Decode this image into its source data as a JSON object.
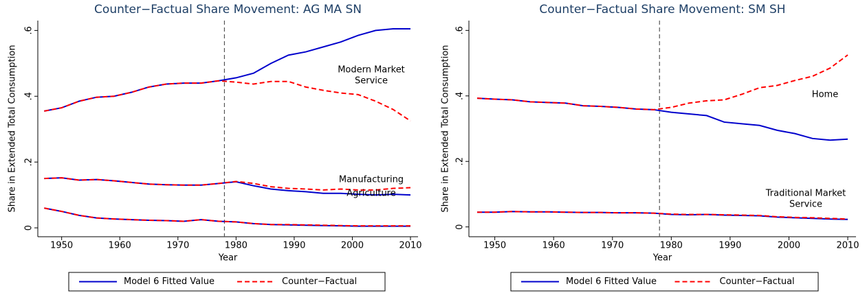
{
  "chart_data": [
    {
      "type": "line",
      "title": "Counter−Factual Share Movement: AG MA SN",
      "x_label": "Year",
      "y_label": "Share in Extended Total Consumption",
      "x": [
        1947,
        1950,
        1953,
        1956,
        1959,
        1962,
        1965,
        1968,
        1971,
        1974,
        1977,
        1980,
        1983,
        1986,
        1989,
        1992,
        1995,
        1998,
        2001,
        2004,
        2007,
        2010
      ],
      "xlim": [
        1945.9,
        2011.3
      ],
      "xticks": [
        1950,
        1960,
        1970,
        1980,
        1990,
        2000,
        2010
      ],
      "ylim": [
        -0.027,
        0.63
      ],
      "yticks": [
        0,
        {
          "value": 0.2,
          "label": ".2"
        },
        {
          "value": 0.4,
          "label": ".4"
        },
        {
          "value": 0.6,
          "label": ".6"
        }
      ],
      "vline": 1978,
      "series_styles": {
        "fitted": {
          "name": "Model 6 Fitted Value",
          "color": "#0000cc",
          "dash": false
        },
        "counterfactual": {
          "name": "Counter−Factual",
          "color": "#ff0000",
          "dash": true
        }
      },
      "sectors": [
        {
          "label": [
            "Modern Market",
            "Service"
          ],
          "fitted": [
            0.355,
            0.365,
            0.385,
            0.397,
            0.4,
            0.412,
            0.428,
            0.437,
            0.44,
            0.44,
            0.447,
            0.456,
            0.47,
            0.5,
            0.525,
            0.535,
            0.55,
            0.565,
            0.585,
            0.6,
            0.605,
            0.605
          ],
          "counterfactual": [
            0.355,
            0.365,
            0.385,
            0.397,
            0.4,
            0.412,
            0.428,
            0.437,
            0.44,
            0.44,
            0.447,
            0.443,
            0.437,
            0.445,
            0.445,
            0.428,
            0.418,
            0.41,
            0.405,
            0.385,
            0.36,
            0.325
          ]
        },
        {
          "label": [
            "Manufacturing"
          ],
          "fitted": [
            0.15,
            0.152,
            0.145,
            0.147,
            0.143,
            0.138,
            0.133,
            0.131,
            0.13,
            0.13,
            0.135,
            0.14,
            0.128,
            0.118,
            0.113,
            0.11,
            0.105,
            0.105,
            0.102,
            0.1,
            0.102,
            0.1
          ],
          "counterfactual": [
            0.15,
            0.152,
            0.145,
            0.147,
            0.143,
            0.138,
            0.133,
            0.131,
            0.13,
            0.13,
            0.135,
            0.141,
            0.135,
            0.125,
            0.12,
            0.118,
            0.115,
            0.118,
            0.115,
            0.115,
            0.12,
            0.122
          ]
        },
        {
          "label": [
            "Agriculture"
          ],
          "fitted": [
            0.06,
            0.05,
            0.038,
            0.03,
            0.027,
            0.025,
            0.023,
            0.022,
            0.02,
            0.025,
            0.02,
            0.018,
            0.013,
            0.01,
            0.009,
            0.008,
            0.007,
            0.006,
            0.005,
            0.005,
            0.005,
            0.005
          ],
          "counterfactual": [
            0.06,
            0.05,
            0.038,
            0.03,
            0.027,
            0.025,
            0.023,
            0.022,
            0.02,
            0.025,
            0.02,
            0.018,
            0.013,
            0.01,
            0.01,
            0.009,
            0.008,
            0.007,
            0.006,
            0.006,
            0.006,
            0.006
          ]
        }
      ]
    },
    {
      "type": "line",
      "title": "Counter−Factual Share Movement: SM SH",
      "x_label": "Year",
      "y_label": "Share in Extended Total Consumption",
      "x": [
        1947,
        1950,
        1953,
        1956,
        1959,
        1962,
        1965,
        1968,
        1971,
        1974,
        1977,
        1980,
        1983,
        1986,
        1989,
        1992,
        1995,
        1998,
        2001,
        2004,
        2007,
        2010
      ],
      "xlim": [
        1945.6,
        2011.4
      ],
      "xticks": [
        1950,
        1960,
        1970,
        1980,
        1990,
        2000,
        2010
      ],
      "ylim": [
        -0.03,
        0.63
      ],
      "yticks": [
        0,
        {
          "value": 0.2,
          "label": ".2"
        },
        {
          "value": 0.4,
          "label": ".4"
        },
        {
          "value": 0.6,
          "label": ".6"
        }
      ],
      "vline": 1978,
      "series_styles": {
        "fitted": {
          "name": "Model 6 Fitted Value",
          "color": "#0000cc",
          "dash": false
        },
        "counterfactual": {
          "name": "Counter−Factual",
          "color": "#ff0000",
          "dash": true
        }
      },
      "sectors": [
        {
          "label": [
            "Home"
          ],
          "fitted": [
            0.393,
            0.39,
            0.388,
            0.382,
            0.38,
            0.378,
            0.37,
            0.368,
            0.365,
            0.36,
            0.358,
            0.35,
            0.345,
            0.34,
            0.32,
            0.315,
            0.31,
            0.295,
            0.285,
            0.27,
            0.265,
            0.268
          ],
          "counterfactual": [
            0.393,
            0.39,
            0.388,
            0.382,
            0.38,
            0.378,
            0.37,
            0.368,
            0.365,
            0.36,
            0.358,
            0.365,
            0.378,
            0.385,
            0.388,
            0.405,
            0.425,
            0.432,
            0.447,
            0.46,
            0.485,
            0.525
          ]
        },
        {
          "label": [
            "Traditional Market",
            "Service"
          ],
          "fitted": [
            0.045,
            0.045,
            0.047,
            0.046,
            0.046,
            0.045,
            0.044,
            0.044,
            0.043,
            0.043,
            0.042,
            0.038,
            0.037,
            0.038,
            0.036,
            0.035,
            0.034,
            0.03,
            0.028,
            0.026,
            0.024,
            0.023
          ],
          "counterfactual": [
            0.045,
            0.045,
            0.047,
            0.046,
            0.046,
            0.045,
            0.044,
            0.044,
            0.043,
            0.043,
            0.042,
            0.039,
            0.038,
            0.038,
            0.037,
            0.036,
            0.035,
            0.031,
            0.029,
            0.028,
            0.026,
            0.024
          ]
        }
      ]
    }
  ]
}
